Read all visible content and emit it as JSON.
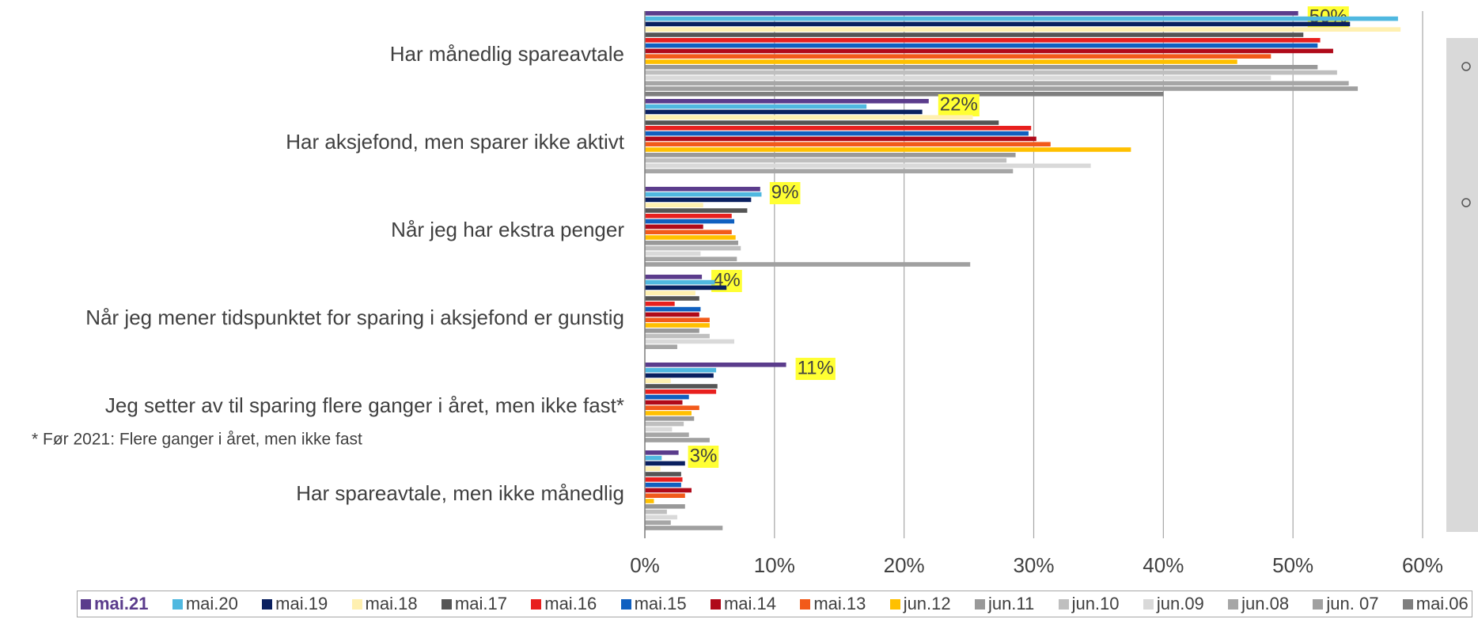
{
  "chart_data": {
    "type": "hbar",
    "categories": [
      "Har månedlig spareavtale",
      "Har aksjefond, men sparer ikke aktivt",
      "Når jeg har ekstra penger",
      "Når jeg mener tidspunktet for sparing i aksjefond er gunstig",
      "Jeg setter av til sparing flere ganger i året, men ikke fast*",
      "Har spareavtale, men ikke månedlig"
    ],
    "annotation": "* Før 2021: Flere ganger i året, men ikke fast",
    "xlim": [
      0,
      60
    ],
    "xticks": [
      {
        "value": 0,
        "label": "0%"
      },
      {
        "value": 10,
        "label": "10%"
      },
      {
        "value": 20,
        "label": "20%"
      },
      {
        "value": 30,
        "label": "30%"
      },
      {
        "value": 40,
        "label": "40%"
      },
      {
        "value": 50,
        "label": "50%"
      },
      {
        "value": 60,
        "label": "60%"
      }
    ],
    "grid": true,
    "legend": "bottom",
    "series": [
      {
        "name": "mai.21",
        "color": "#5b3c8c",
        "values": [
          50.4,
          21.9,
          8.9,
          4.4,
          10.9,
          2.6
        ],
        "value_labels": [
          "50%",
          "22%",
          "9%",
          "4%",
          "11%",
          "3%"
        ]
      },
      {
        "name": "mai.20",
        "color": "#4fb8e0",
        "values": [
          58.1,
          17.1,
          9.0,
          5.4,
          5.5,
          1.3
        ]
      },
      {
        "name": "mai.19",
        "color": "#0a2060",
        "values": [
          54.4,
          21.4,
          8.2,
          6.3,
          5.3,
          3.1
        ]
      },
      {
        "name": "mai.18",
        "color": "#fff0b0",
        "values": [
          58.3,
          25.3,
          4.5,
          3.9,
          2.0,
          1.2
        ]
      },
      {
        "name": "mai.17",
        "color": "#555555",
        "values": [
          50.8,
          27.3,
          7.9,
          4.2,
          5.6,
          2.8
        ]
      },
      {
        "name": "mai.16",
        "color": "#e8201e",
        "values": [
          52.1,
          29.8,
          6.7,
          2.3,
          5.5,
          2.9
        ]
      },
      {
        "name": "mai.15",
        "color": "#1060c0",
        "values": [
          51.9,
          29.6,
          6.9,
          4.3,
          3.4,
          2.8
        ]
      },
      {
        "name": "mai.14",
        "color": "#b00a1a",
        "values": [
          53.1,
          30.2,
          4.5,
          4.2,
          2.9,
          3.6
        ]
      },
      {
        "name": "mai.13",
        "color": "#f25a1a",
        "values": [
          48.3,
          31.3,
          6.7,
          5.0,
          4.2,
          3.1
        ]
      },
      {
        "name": "jun.12",
        "color": "#ffc000",
        "values": [
          45.7,
          37.5,
          7.0,
          5.0,
          3.6,
          0.7
        ]
      },
      {
        "name": "jun.11",
        "color": "#999999",
        "values": [
          51.9,
          28.6,
          7.2,
          4.2,
          3.8,
          3.1
        ]
      },
      {
        "name": "jun.10",
        "color": "#bfbfbf",
        "values": [
          53.4,
          27.9,
          7.4,
          5.0,
          3.0,
          1.7
        ]
      },
      {
        "name": "jun.09",
        "color": "#d9d9d9",
        "values": [
          48.3,
          34.4,
          4.3,
          6.9,
          2.1,
          2.5
        ]
      },
      {
        "name": "jun.08",
        "color": "#a6a6a6",
        "values": [
          54.3,
          28.4,
          7.1,
          2.5,
          3.4,
          2.0
        ]
      },
      {
        "name": "jun. 07",
        "color": "#a0a0a0",
        "values": [
          55.0,
          null,
          25.1,
          null,
          5.0,
          6.0
        ]
      },
      {
        "name": "mai.06",
        "color": "#7f7f7f",
        "values": [
          40.0,
          null,
          null,
          null,
          null,
          null
        ]
      }
    ]
  }
}
